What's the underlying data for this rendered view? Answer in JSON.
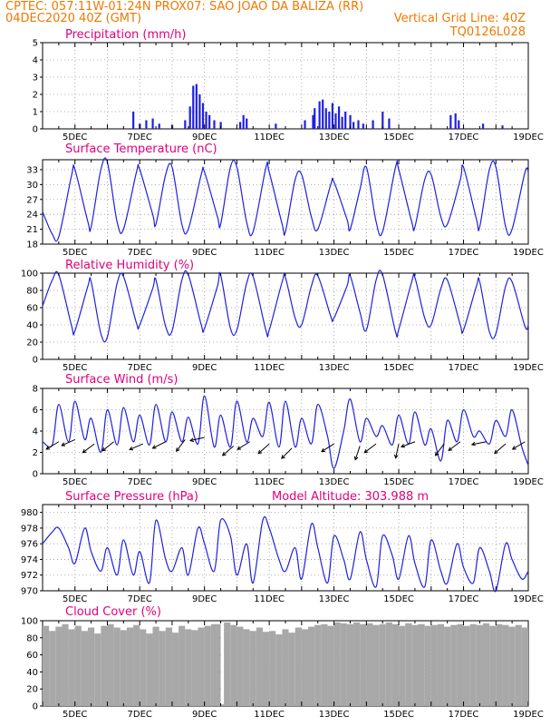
{
  "header": {
    "line1": "CPTEC:   057:11W-01:24N   PROX07: SAO JOAO DA BALIZA (RR)",
    "date": "04DEC2020 40Z (GMT)",
    "grid_note": "Vertical Grid Line: 40Z",
    "run_code": "TQ0126L028"
  },
  "colors": {
    "header": "#f07800",
    "panel_title": "#e0007a",
    "series": "#2020e0",
    "cloud": "#a8a8a8",
    "grid": "#9a9a9a"
  },
  "x_axis": {
    "start_day": 4,
    "end_day": 19,
    "tick_labels": [
      "5DEC",
      "7DEC",
      "9DEC",
      "11DEC",
      "13DEC",
      "15DEC",
      "17DEC",
      "19DEC"
    ]
  },
  "chart_data": [
    {
      "type": "bar",
      "title": "Precipitation (mm/h)",
      "ylim": [
        0,
        5
      ],
      "yticks": [
        0,
        1,
        2,
        3,
        4,
        5
      ],
      "grid": true,
      "series": [
        {
          "x": [
            6.8,
            7.0,
            7.2,
            7.4,
            7.6,
            8.0,
            8.4,
            8.55,
            8.65,
            8.75,
            8.85,
            8.95,
            9.05,
            9.15,
            9.3,
            9.5,
            10.1,
            10.2,
            10.3,
            11.2,
            12.1,
            12.35,
            12.4,
            12.55,
            12.65,
            12.75,
            12.85,
            12.95,
            13.05,
            13.15,
            13.25,
            13.35,
            13.5,
            13.6,
            13.75,
            13.9,
            14.2,
            14.5,
            14.7,
            16.6,
            16.75,
            16.85,
            17.6,
            18.2
          ],
          "y": [
            1.0,
            0.3,
            0.5,
            0.6,
            0.3,
            0.2,
            0.5,
            1.3,
            2.5,
            2.6,
            2.0,
            1.5,
            1.0,
            0.8,
            0.5,
            0.4,
            0.4,
            0.8,
            0.6,
            0.3,
            0.5,
            0.8,
            1.2,
            1.6,
            1.7,
            1.2,
            1.0,
            1.5,
            0.9,
            1.3,
            0.7,
            1.0,
            0.8,
            0.4,
            0.5,
            0.3,
            0.5,
            1.0,
            0.6,
            0.8,
            0.9,
            0.5,
            0.3,
            0.2
          ]
        }
      ]
    },
    {
      "type": "line",
      "title": "Surface Temperature (nC)",
      "ylim": [
        18,
        35
      ],
      "yticks": [
        18,
        21,
        24,
        27,
        30,
        33
      ],
      "grid": true,
      "series": [
        {
          "x": [
            4.0,
            4.3,
            4.5,
            4.9,
            5.0,
            5.4,
            5.5,
            5.8,
            6.0,
            6.3,
            6.5,
            6.9,
            7.0,
            7.4,
            7.5,
            7.8,
            8.0,
            8.3,
            8.5,
            8.9,
            9.0,
            9.4,
            9.5,
            9.8,
            10.0,
            10.3,
            10.5,
            10.9,
            11.0,
            11.4,
            11.5,
            11.8,
            12.0,
            12.3,
            12.5,
            12.9,
            13.0,
            13.4,
            13.5,
            13.8,
            14.0,
            14.3,
            14.5,
            14.9,
            15.0,
            15.4,
            15.5,
            15.8,
            16.0,
            16.3,
            16.5,
            16.9,
            17.0,
            17.4,
            17.5,
            17.8,
            18.0,
            18.3,
            18.5,
            18.9,
            19.0
          ],
          "y": [
            24.5,
            20.0,
            19.5,
            32.0,
            33.0,
            22.5,
            21.5,
            33.0,
            34.5,
            22.5,
            21.0,
            32.5,
            33.0,
            24.0,
            22.0,
            32.0,
            33.5,
            22.0,
            21.0,
            32.0,
            32.5,
            23.5,
            22.0,
            33.5,
            33.5,
            22.5,
            20.5,
            33.5,
            32.5,
            22.0,
            20.5,
            31.0,
            32.0,
            23.5,
            21.0,
            30.0,
            30.5,
            23.0,
            21.0,
            29.0,
            33.5,
            22.5,
            20.5,
            33.5,
            33.0,
            22.5,
            21.5,
            31.0,
            32.0,
            23.5,
            22.0,
            31.0,
            33.5,
            23.0,
            21.5,
            33.0,
            33.5,
            21.5,
            21.0,
            32.5,
            32.5
          ]
        }
      ]
    },
    {
      "type": "line",
      "title": "Relative Humidity (%)",
      "ylim": [
        0,
        100
      ],
      "yticks": [
        0,
        20,
        40,
        60,
        80,
        100
      ],
      "grid": true,
      "series": [
        {
          "x": [
            4.0,
            4.3,
            4.5,
            4.9,
            5.0,
            5.4,
            5.5,
            5.8,
            6.0,
            6.3,
            6.5,
            6.9,
            7.0,
            7.4,
            7.5,
            7.8,
            8.0,
            8.3,
            8.5,
            8.9,
            9.0,
            9.4,
            9.5,
            9.8,
            10.0,
            10.3,
            10.5,
            10.9,
            11.0,
            11.4,
            11.5,
            11.8,
            12.0,
            12.3,
            12.5,
            12.9,
            13.0,
            13.4,
            13.5,
            13.8,
            14.0,
            14.3,
            14.5,
            14.9,
            15.0,
            15.4,
            15.5,
            15.8,
            16.0,
            16.3,
            16.5,
            16.9,
            17.0,
            17.4,
            17.5,
            17.8,
            18.0,
            18.3,
            18.5,
            18.9,
            19.0
          ],
          "y": [
            62.0,
            92.0,
            98.0,
            38.0,
            33.0,
            85.0,
            90.0,
            30.0,
            26.0,
            88.0,
            96.0,
            42.0,
            40.0,
            82.0,
            92.0,
            38.0,
            33.0,
            92.0,
            98.0,
            40.0,
            36.0,
            85.0,
            98.0,
            36.0,
            34.0,
            88.0,
            96.0,
            33.0,
            34.0,
            90.0,
            95.0,
            48.0,
            40.0,
            85.0,
            97.0,
            50.0,
            48.0,
            85.0,
            97.0,
            55.0,
            34.0,
            92.0,
            98.0,
            32.0,
            35.0,
            90.0,
            95.0,
            48.0,
            40.0,
            82.0,
            92.0,
            40.0,
            34.0,
            85.0,
            90.0,
            32.0,
            30.0,
            85.0,
            90.0,
            38.0,
            40.0
          ]
        }
      ]
    },
    {
      "type": "line",
      "title": "Surface Wind (m/s)",
      "ylim": [
        0,
        8
      ],
      "yticks": [
        0,
        2,
        4,
        6,
        8
      ],
      "grid": true,
      "series": [
        {
          "x": [
            4.0,
            4.3,
            4.5,
            4.8,
            5.0,
            5.3,
            5.5,
            5.8,
            6.0,
            6.3,
            6.5,
            6.8,
            7.0,
            7.3,
            7.5,
            7.8,
            8.0,
            8.3,
            8.5,
            8.8,
            9.0,
            9.3,
            9.5,
            9.8,
            10.0,
            10.3,
            10.5,
            10.8,
            11.0,
            11.3,
            11.5,
            11.8,
            12.0,
            12.3,
            12.5,
            12.8,
            13.0,
            13.3,
            13.5,
            13.8,
            14.0,
            14.3,
            14.5,
            14.8,
            15.0,
            15.3,
            15.5,
            15.8,
            16.0,
            16.3,
            16.5,
            16.8,
            17.0,
            17.3,
            17.5,
            17.8,
            18.0,
            18.3,
            18.5,
            18.8,
            19.0
          ],
          "y": [
            3.0,
            2.7,
            6.5,
            3.0,
            6.8,
            3.2,
            5.2,
            2.0,
            6.0,
            2.7,
            6.2,
            3.0,
            5.5,
            2.7,
            6.5,
            3.0,
            5.8,
            3.0,
            5.3,
            2.8,
            7.3,
            2.5,
            5.5,
            2.5,
            6.8,
            3.0,
            5.2,
            3.5,
            6.7,
            2.5,
            6.8,
            2.5,
            5.2,
            2.8,
            6.5,
            3.5,
            0.5,
            4.0,
            7.0,
            3.0,
            5.2,
            3.5,
            4.5,
            2.7,
            5.5,
            2.8,
            5.8,
            2.7,
            4.2,
            1.2,
            5.0,
            3.0,
            6.0,
            3.5,
            4.0,
            2.8,
            5.0,
            3.5,
            6.0,
            2.5,
            0.8
          ]
        }
      ],
      "wind_vectors": [
        {
          "x": 4.5,
          "dx": 1.0,
          "dy": 0.6,
          "speed": 3.0
        },
        {
          "x": 5.0,
          "dx": 0.9,
          "dy": 0.4,
          "speed": 3.2
        },
        {
          "x": 5.6,
          "dx": 0.8,
          "dy": 0.6,
          "speed": 2.8
        },
        {
          "x": 6.2,
          "dx": 1.0,
          "dy": 0.8,
          "speed": 3.0
        },
        {
          "x": 7.1,
          "dx": 0.7,
          "dy": 0.3,
          "speed": 2.8
        },
        {
          "x": 7.8,
          "dx": 1.0,
          "dy": 0.5,
          "speed": 3.0
        },
        {
          "x": 8.4,
          "dx": 0.6,
          "dy": 0.8,
          "speed": 3.2
        },
        {
          "x": 9.0,
          "dx": 0.9,
          "dy": 0.2,
          "speed": 3.4
        },
        {
          "x": 9.9,
          "dx": 0.7,
          "dy": 0.6,
          "speed": 2.6
        },
        {
          "x": 10.4,
          "dx": 0.8,
          "dy": 0.5,
          "speed": 3.0
        },
        {
          "x": 11.0,
          "dx": 0.9,
          "dy": 0.8,
          "speed": 2.8
        },
        {
          "x": 11.7,
          "dx": 0.9,
          "dy": 0.9,
          "speed": 2.4
        },
        {
          "x": 13.0,
          "dx": 0.8,
          "dy": 0.5,
          "speed": 2.8
        },
        {
          "x": 13.8,
          "dx": 0.3,
          "dy": 0.9,
          "speed": 2.6
        },
        {
          "x": 14.3,
          "dx": 0.8,
          "dy": 0.6,
          "speed": 2.8
        },
        {
          "x": 15.0,
          "dx": 0.2,
          "dy": 0.9,
          "speed": 2.8
        },
        {
          "x": 15.5,
          "dx": 0.8,
          "dy": 0.3,
          "speed": 3.0
        },
        {
          "x": 16.4,
          "dx": 0.6,
          "dy": 0.8,
          "speed": 2.8
        },
        {
          "x": 16.9,
          "dx": 0.8,
          "dy": 0.6,
          "speed": 3.0
        },
        {
          "x": 17.7,
          "dx": 1.0,
          "dy": 0.2,
          "speed": 3.0
        },
        {
          "x": 18.3,
          "dx": 0.7,
          "dy": 0.6,
          "speed": 2.8
        },
        {
          "x": 18.9,
          "dx": 0.5,
          "dy": 0.3,
          "speed": 3.0
        }
      ]
    },
    {
      "type": "line",
      "title": "Surface Pressure (hPa)",
      "annotation": "Model Altitude: 303.988 m",
      "ylim": [
        970,
        981
      ],
      "yticks": [
        970,
        972,
        974,
        976,
        978,
        980
      ],
      "grid": true,
      "series": [
        {
          "x": [
            4.0,
            4.3,
            4.5,
            4.8,
            5.0,
            5.3,
            5.5,
            5.8,
            6.0,
            6.3,
            6.5,
            6.8,
            7.0,
            7.3,
            7.5,
            7.8,
            8.0,
            8.3,
            8.5,
            8.8,
            9.0,
            9.3,
            9.5,
            9.8,
            10.0,
            10.3,
            10.5,
            10.8,
            11.0,
            11.3,
            11.5,
            11.8,
            12.0,
            12.3,
            12.5,
            12.8,
            13.0,
            13.3,
            13.5,
            13.8,
            14.0,
            14.3,
            14.5,
            14.8,
            15.0,
            15.3,
            15.5,
            15.8,
            16.0,
            16.3,
            16.5,
            16.8,
            17.0,
            17.3,
            17.5,
            17.8,
            18.0,
            18.3,
            18.5,
            18.8,
            19.0
          ],
          "y": [
            976.0,
            977.5,
            978.0,
            975.5,
            973.5,
            978.0,
            975.0,
            972.5,
            975.5,
            972.0,
            976.5,
            972.0,
            975.0,
            971.0,
            979.0,
            974.0,
            972.5,
            975.5,
            972.0,
            978.0,
            976.0,
            972.5,
            979.0,
            977.0,
            972.0,
            976.0,
            971.0,
            979.0,
            978.0,
            974.0,
            972.5,
            975.5,
            971.5,
            978.5,
            975.5,
            971.0,
            977.0,
            974.0,
            971.5,
            977.5,
            974.0,
            970.5,
            977.0,
            974.5,
            971.5,
            977.0,
            973.5,
            970.5,
            976.5,
            972.5,
            971.0,
            976.0,
            973.0,
            971.0,
            975.5,
            972.5,
            970.0,
            976.0,
            974.0,
            971.5,
            972.5
          ]
        }
      ]
    },
    {
      "type": "area",
      "title": "Cloud Cover (%)",
      "ylim": [
        0,
        100
      ],
      "yticks": [
        0,
        20,
        40,
        60,
        80,
        100
      ],
      "grid": true,
      "series": [
        {
          "x": [
            4.0,
            4.2,
            4.4,
            4.6,
            4.8,
            5.0,
            5.2,
            5.4,
            5.6,
            5.8,
            6.0,
            6.2,
            6.4,
            6.6,
            6.8,
            7.0,
            7.2,
            7.4,
            7.6,
            7.8,
            8.0,
            8.2,
            8.4,
            8.6,
            8.8,
            9.0,
            9.2,
            9.4,
            9.5,
            9.6,
            9.8,
            10.0,
            10.2,
            10.4,
            10.6,
            10.8,
            11.0,
            11.2,
            11.4,
            11.6,
            11.8,
            12.0,
            12.2,
            12.4,
            12.6,
            12.8,
            13.0,
            13.2,
            13.4,
            13.6,
            13.8,
            14.0,
            14.2,
            14.4,
            14.6,
            14.8,
            15.0,
            15.2,
            15.4,
            15.6,
            15.8,
            16.0,
            16.2,
            16.4,
            16.6,
            16.8,
            17.0,
            17.2,
            17.4,
            17.6,
            17.8,
            18.0,
            18.2,
            18.4,
            18.6,
            18.8,
            19.0
          ],
          "y": [
            94,
            88,
            93,
            96,
            90,
            94,
            88,
            92,
            85,
            94,
            96,
            92,
            89,
            92,
            95,
            90,
            85,
            93,
            88,
            92,
            86,
            94,
            90,
            89,
            92,
            94,
            96,
            96,
            2,
            98,
            95,
            93,
            90,
            88,
            92,
            87,
            88,
            84,
            90,
            86,
            92,
            90,
            93,
            95,
            96,
            94,
            98,
            97,
            96,
            98,
            96,
            97,
            95,
            96,
            98,
            96,
            94,
            97,
            95,
            96,
            94,
            95,
            96,
            93,
            95,
            96,
            94,
            96,
            95,
            97,
            94,
            96,
            95,
            93,
            95,
            92,
            94
          ]
        }
      ]
    }
  ]
}
